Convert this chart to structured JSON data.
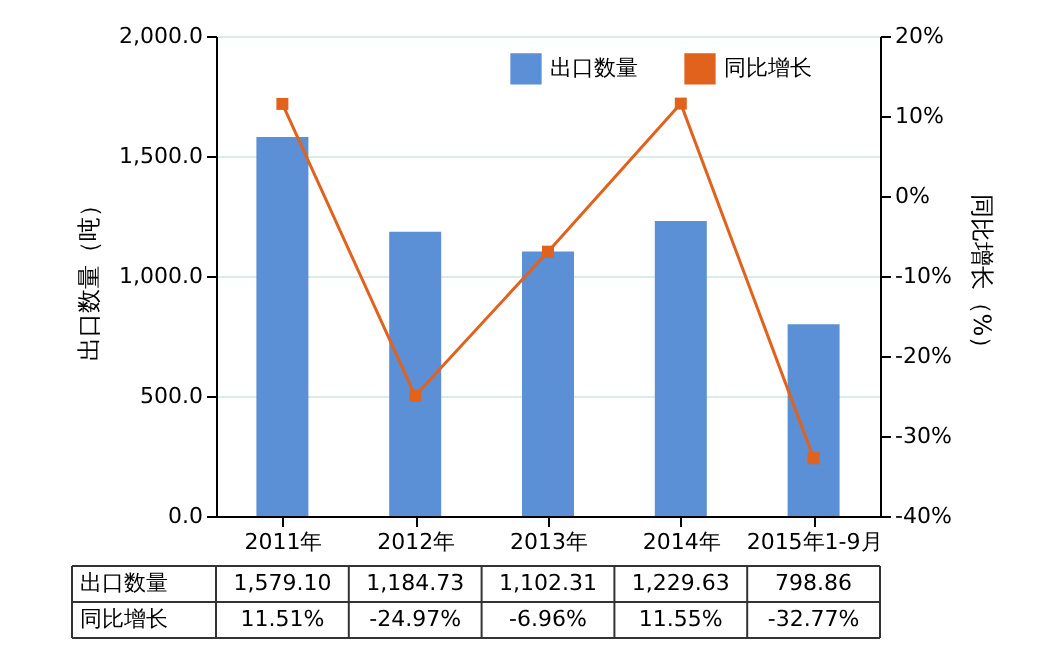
{
  "chart_data": {
    "type": "bar",
    "categories": [
      "2011年",
      "2012年",
      "2013年",
      "2014年",
      "2015年1-9月"
    ],
    "ylabel": "出口数量（吨）",
    "y2label": "同比增长（%）",
    "series": [
      {
        "name": "出口数量",
        "color": "#5b8fd6",
        "values": [
          1579.1,
          1184.73,
          1102.31,
          1229.63,
          798.86
        ],
        "value_labels": [
          "1,579.10",
          "1,184.73",
          "1,102.31",
          "1,229.63",
          "798.86"
        ]
      },
      {
        "name": "同比增长",
        "type": "line",
        "axis": "y2",
        "color": "#e0621c",
        "marker": "square",
        "values": [
          11.51,
          -24.97,
          -6.96,
          11.55,
          -32.77
        ],
        "value_labels": [
          "11.51%",
          "-24.97%",
          "-6.96%",
          "11.55%",
          "-32.77%"
        ]
      }
    ],
    "ylim": [
      0,
      2000
    ],
    "yticks": [
      {
        "value": 0,
        "label": "0.0"
      },
      {
        "value": 500,
        "label": "500.0"
      },
      {
        "value": 1000,
        "label": "1,000.0"
      },
      {
        "value": 1500,
        "label": "1,500.0"
      },
      {
        "value": 2000,
        "label": "2,000.0"
      }
    ],
    "y2lim": [
      -40,
      20
    ],
    "y2ticks": [
      {
        "value": -40,
        "label": "-40%"
      },
      {
        "value": -30,
        "label": "-30%"
      },
      {
        "value": -20,
        "label": "-20%"
      },
      {
        "value": -10,
        "label": "-10%"
      },
      {
        "value": 0,
        "label": "0%"
      },
      {
        "value": 10,
        "label": "10%"
      },
      {
        "value": 20,
        "label": "20%"
      }
    ],
    "grid": "y",
    "legend": "top right"
  }
}
